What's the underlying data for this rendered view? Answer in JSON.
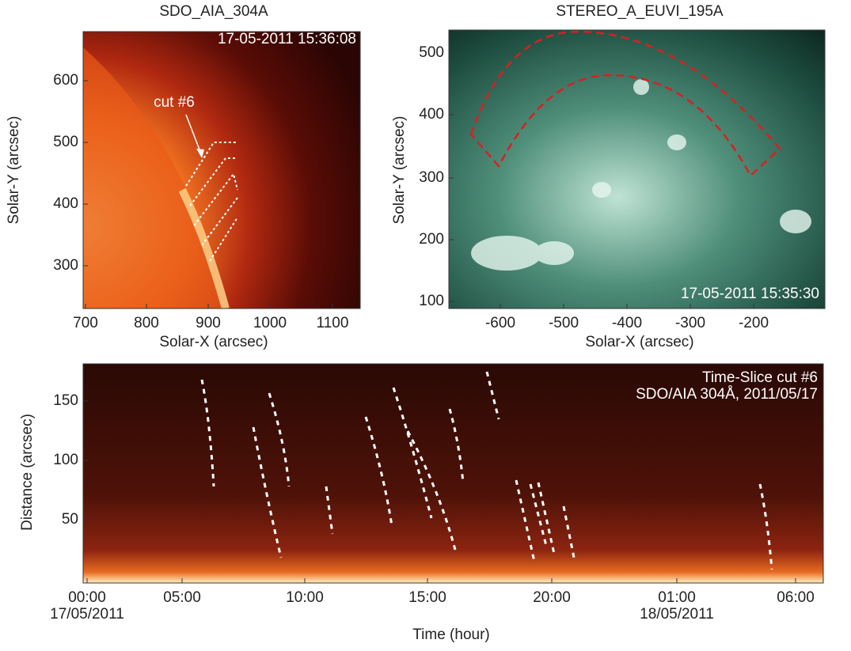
{
  "panels": [
    {
      "title": "SDO_AIA_304A",
      "timestamp": "17-05-2011 15:36:08",
      "annotation": "cut #6",
      "xlabel": "Solar-X (arcsec)",
      "ylabel": "Solar-Y (arcsec)",
      "xticks": [
        700,
        800,
        900,
        1000,
        1100
      ],
      "yticks": [
        600,
        500,
        400,
        300
      ]
    },
    {
      "title": "STEREO_A_EUVI_195A",
      "timestamp": "17-05-2011 15:35:30",
      "xlabel": "Solar-X (arcsec)",
      "ylabel": "Solar-Y (arcsec)",
      "xticks": [
        -600,
        -500,
        -400,
        -300,
        -200
      ],
      "yticks": [
        500,
        400,
        300,
        200,
        100
      ]
    },
    {
      "annotations": [
        "Time-Slice cut #6",
        "SDO/AIA 304Å, 2011/05/17"
      ],
      "xlabel": "Time (hour)",
      "ylabel": "Distance (arcsec)",
      "xticks": [
        "00:00",
        "05:00",
        "10:00",
        "15:00",
        "20:00",
        "01:00",
        "06:00"
      ],
      "dates": [
        "17/05/2011",
        "18/05/2011"
      ],
      "yticks": [
        150,
        100,
        50
      ]
    }
  ]
}
